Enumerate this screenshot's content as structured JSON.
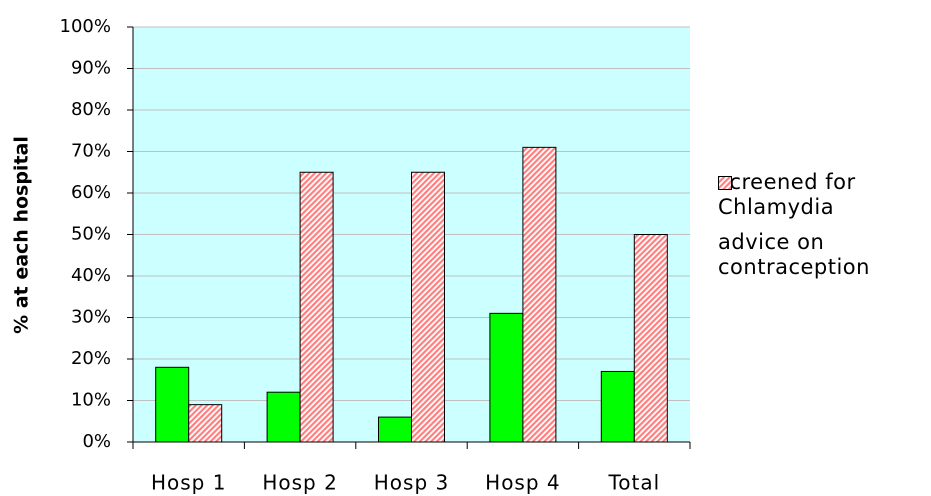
{
  "chart_data": {
    "type": "bar",
    "y_label": "% at each hospital",
    "categories": [
      "Hosp 1",
      "Hosp 2",
      "Hosp 3",
      "Hosp 4",
      "Total"
    ],
    "series": [
      {
        "name": "screened for Chlamydia",
        "color": "#00ff00",
        "values": [
          18,
          12,
          6,
          31,
          17
        ]
      },
      {
        "name": "advice on contraception",
        "color": "#ff8080",
        "values": [
          9,
          65,
          65,
          71,
          50
        ]
      }
    ],
    "ylim": [
      0,
      100
    ],
    "yticks": [
      {
        "value": 0,
        "label": "0%"
      },
      {
        "value": 10,
        "label": "10%"
      },
      {
        "value": 20,
        "label": "20%"
      },
      {
        "value": 30,
        "label": "30%"
      },
      {
        "value": 40,
        "label": "40%"
      },
      {
        "value": 50,
        "label": "50%"
      },
      {
        "value": 60,
        "label": "60%"
      },
      {
        "value": 70,
        "label": "70%"
      },
      {
        "value": 80,
        "label": "80%"
      },
      {
        "value": 90,
        "label": "90%"
      },
      {
        "value": 100,
        "label": "100%"
      }
    ],
    "grid": true,
    "legend": "right"
  }
}
